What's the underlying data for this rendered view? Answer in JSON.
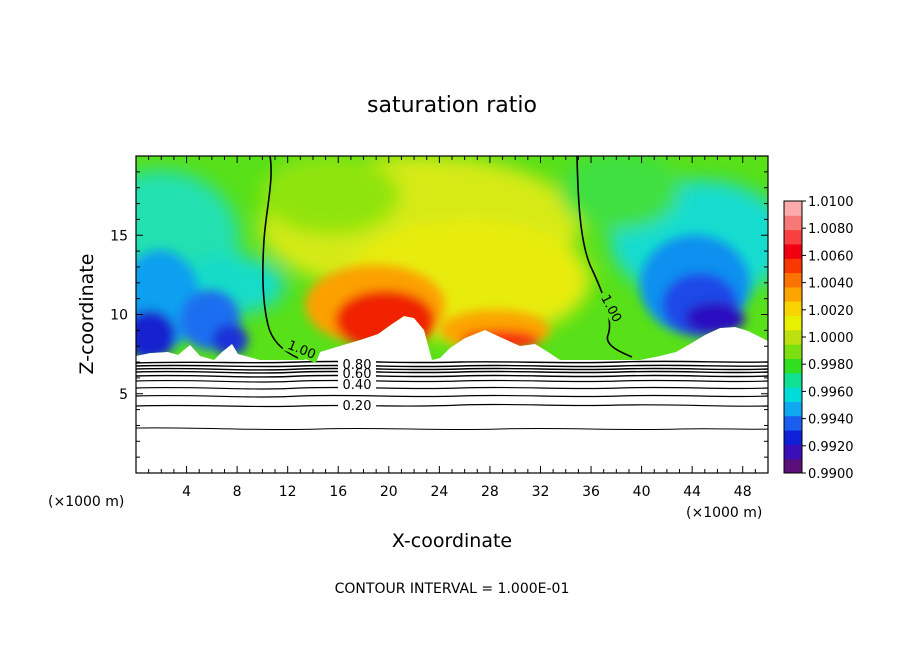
{
  "chart_data": {
    "type": "heatmap",
    "title": "saturation ratio",
    "xlabel": "X-coordinate",
    "ylabel": "Z-coordinate",
    "x_unit_label": "(×1000 m)",
    "x_unit_label_right": "(×1000 m)",
    "xlim": [
      0,
      50
    ],
    "ylim": [
      0,
      20
    ],
    "x_ticks": [
      4,
      8,
      12,
      16,
      20,
      24,
      28,
      32,
      36,
      40,
      44,
      48
    ],
    "y_ticks": [
      5,
      10,
      15
    ],
    "footer": "CONTOUR INTERVAL = 1.000E-01",
    "colorbar": {
      "ticks": [
        "1.0100",
        "1.0080",
        "1.0060",
        "1.0040",
        "1.0020",
        "1.0000",
        "0.9980",
        "0.9960",
        "0.9940",
        "0.9920",
        "0.9900"
      ],
      "range": [
        0.99,
        1.01
      ],
      "colors": [
        "#5a0f7a",
        "#3a0fb8",
        "#1020d8",
        "#1a5ef0",
        "#10a8f0",
        "#00dcd8",
        "#10e090",
        "#30e020",
        "#7ce010",
        "#bce010",
        "#e8f000",
        "#f8d400",
        "#fca400",
        "#fc7400",
        "#f83800",
        "#f00010",
        "#f84040",
        "#f87878",
        "#fcaaaa"
      ]
    },
    "contour_labels": [
      "1.00",
      "1.00",
      "0.80",
      "0.60",
      "0.40",
      "0.20"
    ]
  }
}
